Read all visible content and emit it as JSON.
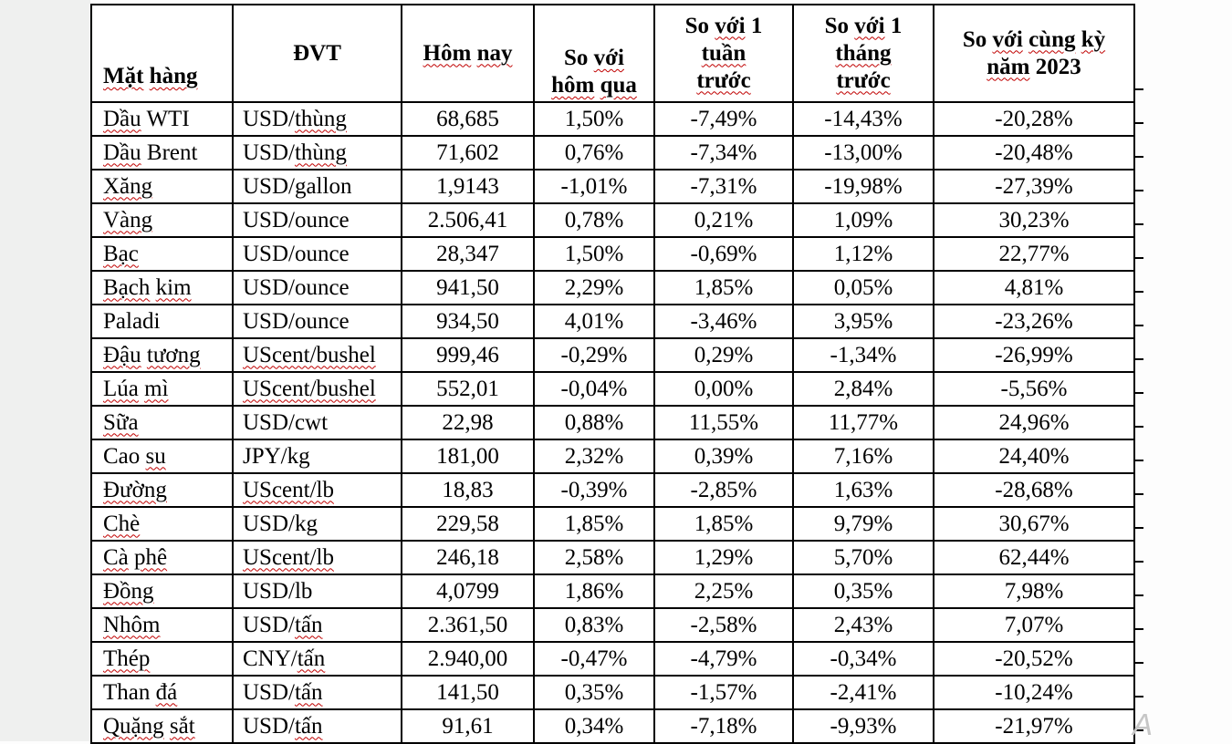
{
  "colors": {
    "border": "#000000",
    "spellcheck_squiggle": "#c00000",
    "page_margin": "#eff0ef",
    "watermark_gray": "#c6c6c6"
  },
  "watermark": "A",
  "table": {
    "headers": [
      "«Mặt» «hàng»",
      "ĐVT",
      "«Hôm» «nay»",
      "So «với»\n«hôm» «qua»",
      "So «với» 1\n«tuần»\n«trước»",
      "So «với» 1\n«tháng»\n«trước»",
      "So «với» «cùng» «kỳ»\n«năm» 2023"
    ],
    "header_plain": [
      "Mặt hàng",
      "ĐVT",
      "Hôm nay",
      "So với hôm qua",
      "So với 1 tuần trước",
      "So với 1 tháng trước",
      "So với cùng kỳ năm 2023"
    ],
    "rows": [
      [
        "«Dầu» WTI",
        "USD/«thùng»",
        "68,685",
        "1,50%",
        "-7,49%",
        "-14,43%",
        "-20,28%"
      ],
      [
        "«Dầu» Brent",
        "USD/«thùng»",
        "71,602",
        "0,76%",
        "-7,34%",
        "-13,00%",
        "-20,48%"
      ],
      [
        "«Xăng»",
        "USD/gallon",
        "1,9143",
        "-1,01%",
        "-7,31%",
        "-19,98%",
        "-27,39%"
      ],
      [
        "«Vàng»",
        "USD/ounce",
        "2.506,41",
        "0,78%",
        "0,21%",
        "1,09%",
        "30,23%"
      ],
      [
        "«Bạc»",
        "USD/ounce",
        "28,347",
        "1,50%",
        "-0,69%",
        "1,12%",
        "22,77%"
      ],
      [
        "«Bạch» «kim»",
        "USD/ounce",
        "941,50",
        "2,29%",
        "1,85%",
        "0,05%",
        "4,81%"
      ],
      [
        "Paladi",
        "USD/ounce",
        "934,50",
        "4,01%",
        "-3,46%",
        "3,95%",
        "-23,26%"
      ],
      [
        "«Đậu» «tương»",
        "«UScent/bushel»",
        "999,46",
        "-0,29%",
        "0,29%",
        "-1,34%",
        "-26,99%"
      ],
      [
        "«Lúa» «mì»",
        "«UScent/bushel»",
        "552,01",
        "-0,04%",
        "0,00%",
        "2,84%",
        "-5,56%"
      ],
      [
        "«Sữa»",
        "USD/cwt",
        "22,98",
        "0,88%",
        "11,55%",
        "11,77%",
        "24,96%"
      ],
      [
        "Cao «su»",
        "JPY/kg",
        "181,00",
        "2,32%",
        "0,39%",
        "7,16%",
        "24,40%"
      ],
      [
        "«Đường»",
        "«UScent/lb»",
        "18,83",
        "-0,39%",
        "-2,85%",
        "1,63%",
        "-28,68%"
      ],
      [
        "«Chè»",
        "USD/kg",
        "229,58",
        "1,85%",
        "1,85%",
        "9,79%",
        "30,67%"
      ],
      [
        "«Cà» «phê»",
        "«UScent/lb»",
        "246,18",
        "2,58%",
        "1,29%",
        "5,70%",
        "62,44%"
      ],
      [
        "«Đồng»",
        "USD/lb",
        "4,0799",
        "1,86%",
        "2,25%",
        "0,35%",
        "7,98%"
      ],
      [
        "«Nhôm»",
        "USD/«tấn»",
        "2.361,50",
        "0,83%",
        "-2,58%",
        "2,43%",
        "7,07%"
      ],
      [
        "«Thép»",
        "CNY/«tấn»",
        "2.940,00",
        "-0,47%",
        "-4,79%",
        "-0,34%",
        "-20,52%"
      ],
      [
        "Than «đá»",
        "USD/«tấn»",
        "141,50",
        "0,35%",
        "-1,57%",
        "-2,41%",
        "-10,24%"
      ],
      [
        "«Quặng» «sắt»",
        "USD/«tấn»",
        "91,61",
        "0,34%",
        "-7,18%",
        "-9,93%",
        "-21,97%"
      ]
    ],
    "column_keys": [
      "commodity",
      "unit",
      "today",
      "vs-yesterday",
      "vs-1-week",
      "vs-1-month",
      "vs-2023"
    ]
  }
}
